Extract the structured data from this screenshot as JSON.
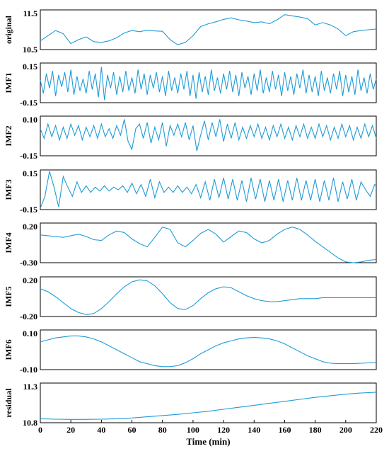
{
  "chart_data": {
    "type": "line",
    "xlabel": "Time (min)",
    "xlim": [
      0,
      220
    ],
    "x_ticks": [
      "0",
      "20",
      "40",
      "60",
      "80",
      "100",
      "120",
      "140",
      "160",
      "180",
      "200",
      "220"
    ],
    "line_color": "#1e9bd7",
    "grid": false,
    "panels": [
      {
        "label": "original",
        "ylim": [
          10.5,
          11.5
        ],
        "ytick_top": "11.5",
        "ytick_bottom": "10.5",
        "x": [
          0,
          5,
          10,
          15,
          20,
          25,
          30,
          35,
          40,
          45,
          50,
          55,
          60,
          65,
          70,
          75,
          80,
          85,
          90,
          95,
          100,
          105,
          110,
          115,
          120,
          125,
          130,
          135,
          140,
          145,
          150,
          155,
          160,
          165,
          170,
          175,
          180,
          185,
          190,
          195,
          200,
          205,
          210,
          215,
          220
        ],
        "y": [
          10.72,
          10.85,
          10.98,
          10.9,
          10.65,
          10.75,
          10.82,
          10.7,
          10.68,
          10.72,
          10.8,
          10.92,
          10.98,
          10.95,
          10.99,
          10.97,
          10.96,
          10.75,
          10.62,
          10.68,
          10.85,
          11.08,
          11.15,
          11.2,
          11.26,
          11.3,
          11.25,
          11.22,
          11.18,
          11.2,
          11.15,
          11.25,
          11.38,
          11.35,
          11.32,
          11.28,
          11.12,
          11.18,
          11.12,
          11.02,
          10.85,
          10.95,
          10.98,
          11.0,
          11.02
        ]
      },
      {
        "label": "IMF1",
        "ylim": [
          -0.15,
          0.15
        ],
        "ytick_top": "0.15",
        "ytick_bottom": "-0.15",
        "x": [
          0,
          2,
          4,
          6,
          8,
          10,
          12,
          14,
          16,
          18,
          20,
          22,
          24,
          26,
          28,
          30,
          32,
          34,
          36,
          38,
          40,
          42,
          44,
          46,
          48,
          50,
          52,
          54,
          56,
          58,
          60,
          62,
          64,
          66,
          68,
          70,
          72,
          74,
          76,
          78,
          80,
          82,
          84,
          86,
          88,
          90,
          92,
          94,
          96,
          98,
          100,
          102,
          104,
          106,
          108,
          110,
          112,
          114,
          116,
          118,
          120,
          122,
          124,
          126,
          128,
          130,
          132,
          134,
          136,
          138,
          140,
          142,
          144,
          146,
          148,
          150,
          152,
          154,
          156,
          158,
          160,
          162,
          164,
          166,
          168,
          170,
          172,
          174,
          176,
          178,
          180,
          182,
          184,
          186,
          188,
          190,
          192,
          194,
          196,
          198,
          200,
          202,
          204,
          206,
          208,
          210,
          212,
          214,
          216,
          218,
          220
        ],
        "y": [
          0.02,
          -0.08,
          0.07,
          -0.04,
          0.09,
          -0.1,
          0.06,
          -0.03,
          0.08,
          -0.07,
          0.1,
          -0.09,
          0.05,
          -0.06,
          0.03,
          -0.08,
          0.09,
          -0.05,
          0.07,
          -0.11,
          0.12,
          -0.13,
          0.06,
          -0.04,
          0.08,
          -0.09,
          0.05,
          -0.07,
          0.09,
          -0.06,
          0.04,
          -0.08,
          0.1,
          -0.05,
          0.07,
          -0.09,
          0.06,
          -0.04,
          0.08,
          -0.07,
          0.05,
          -0.1,
          0.09,
          -0.06,
          0.04,
          -0.08,
          0.07,
          -0.05,
          0.09,
          -0.1,
          0.06,
          -0.12,
          0.08,
          -0.07,
          0.05,
          -0.09,
          0.1,
          -0.06,
          0.04,
          -0.08,
          0.07,
          -0.05,
          0.09,
          -0.07,
          0.06,
          -0.1,
          0.08,
          -0.04,
          0.05,
          -0.09,
          0.07,
          -0.06,
          0.1,
          -0.08,
          0.04,
          -0.07,
          0.09,
          -0.05,
          0.06,
          -0.1,
          0.08,
          -0.06,
          0.05,
          -0.09,
          0.07,
          -0.04,
          0.1,
          -0.08,
          0.06,
          -0.07,
          0.05,
          -0.1,
          0.09,
          -0.06,
          0.04,
          -0.08,
          0.07,
          -0.05,
          0.09,
          -0.1,
          0.06,
          -0.07,
          0.05,
          -0.09,
          0.1,
          -0.06,
          0.04,
          -0.08,
          0.07,
          -0.05,
          0.03
        ]
      },
      {
        "label": "IMF2",
        "ylim": [
          -0.15,
          0.1
        ],
        "ytick_top": "0.10",
        "ytick_bottom": "-0.15",
        "x": [
          0,
          2.5,
          5,
          7.5,
          10,
          12.5,
          15,
          17.5,
          20,
          22.5,
          25,
          27.5,
          30,
          32.5,
          35,
          37.5,
          40,
          42.5,
          45,
          47.5,
          50,
          52.5,
          55,
          57.5,
          60,
          62.5,
          65,
          67.5,
          70,
          72.5,
          75,
          77.5,
          80,
          82.5,
          85,
          87.5,
          90,
          92.5,
          95,
          97.5,
          100,
          102.5,
          105,
          107.5,
          110,
          112.5,
          115,
          117.5,
          120,
          122.5,
          125,
          127.5,
          130,
          132.5,
          135,
          137.5,
          140,
          142.5,
          145,
          147.5,
          150,
          152.5,
          155,
          157.5,
          160,
          162.5,
          165,
          167.5,
          170,
          172.5,
          175,
          177.5,
          180,
          182.5,
          185,
          187.5,
          190,
          192.5,
          195,
          197.5,
          200,
          202.5,
          205,
          207.5,
          210,
          212.5,
          215,
          217.5,
          220
        ],
        "y": [
          0.02,
          -0.04,
          0.05,
          -0.03,
          0.04,
          -0.05,
          0.03,
          -0.04,
          0.05,
          -0.02,
          0.04,
          -0.05,
          0.03,
          -0.03,
          0.04,
          -0.04,
          0.05,
          -0.03,
          0.02,
          -0.04,
          0.04,
          -0.02,
          0.08,
          -0.06,
          -0.11,
          0.02,
          0.05,
          -0.04,
          0.06,
          -0.07,
          0.03,
          -0.05,
          0.06,
          -0.09,
          0.04,
          -0.02,
          0.05,
          -0.03,
          0.06,
          -0.05,
          0.04,
          -0.12,
          -0.02,
          0.07,
          -0.05,
          0.06,
          -0.03,
          0.08,
          -0.06,
          0.05,
          -0.04,
          0.06,
          -0.05,
          0.03,
          -0.04,
          0.04,
          -0.03,
          0.05,
          -0.04,
          0.03,
          -0.05,
          0.04,
          -0.03,
          0.05,
          -0.04,
          0.03,
          -0.05,
          0.04,
          -0.03,
          0.05,
          -0.04,
          0.03,
          -0.04,
          0.05,
          -0.03,
          0.04,
          -0.05,
          0.03,
          -0.04,
          0.05,
          -0.03,
          0.04,
          -0.05,
          0.03,
          -0.04,
          0.05,
          -0.03,
          0.04,
          -0.04
        ]
      },
      {
        "label": "IMF3",
        "ylim": [
          -0.15,
          0.15
        ],
        "ytick_top": "0.15",
        "ytick_bottom": "-0.15",
        "x": [
          0,
          3,
          6,
          9,
          12,
          15,
          18,
          21,
          24,
          27,
          30,
          33,
          36,
          39,
          42,
          45,
          48,
          51,
          54,
          57,
          60,
          63,
          66,
          69,
          72,
          75,
          78,
          81,
          84,
          87,
          90,
          93,
          96,
          99,
          102,
          105,
          108,
          111,
          114,
          117,
          120,
          123,
          126,
          129,
          132,
          135,
          138,
          141,
          144,
          147,
          150,
          153,
          156,
          159,
          162,
          165,
          168,
          171,
          174,
          177,
          180,
          183,
          186,
          189,
          192,
          195,
          198,
          201,
          204,
          207,
          210,
          213,
          216,
          219,
          220
        ],
        "y": [
          -0.14,
          -0.05,
          0.14,
          0.02,
          -0.13,
          0.1,
          0.02,
          -0.05,
          0.06,
          -0.02,
          0.03,
          -0.02,
          0.02,
          -0.01,
          0.03,
          -0.01,
          0.02,
          0.0,
          0.03,
          -0.02,
          0.05,
          -0.03,
          0.04,
          -0.05,
          0.08,
          -0.06,
          0.06,
          -0.02,
          0.02,
          -0.02,
          0.03,
          -0.02,
          0.02,
          -0.03,
          0.04,
          -0.06,
          0.06,
          -0.08,
          0.08,
          -0.06,
          0.09,
          -0.07,
          0.08,
          -0.08,
          0.07,
          -0.09,
          0.09,
          -0.07,
          0.08,
          -0.09,
          0.07,
          -0.08,
          0.08,
          -0.09,
          0.07,
          -0.08,
          0.09,
          -0.08,
          0.07,
          -0.08,
          0.08,
          -0.09,
          0.07,
          -0.08,
          0.09,
          -0.09,
          0.06,
          -0.07,
          0.08,
          -0.08,
          0.06,
          0.0,
          -0.05,
          0.04,
          0.03
        ]
      },
      {
        "label": "IMF4",
        "ylim": [
          -0.3,
          0.2
        ],
        "ytick_top": "0.20",
        "ytick_bottom": "-0.30",
        "x": [
          0,
          5,
          10,
          15,
          20,
          25,
          30,
          35,
          40,
          45,
          50,
          55,
          60,
          65,
          70,
          75,
          80,
          85,
          90,
          95,
          100,
          105,
          110,
          115,
          120,
          125,
          130,
          135,
          140,
          145,
          150,
          155,
          160,
          165,
          170,
          175,
          180,
          185,
          190,
          195,
          200,
          205,
          210,
          215,
          220
        ],
        "y": [
          0.05,
          0.04,
          0.03,
          0.02,
          0.04,
          0.06,
          0.03,
          -0.01,
          -0.02,
          0.05,
          0.1,
          0.08,
          0.0,
          -0.06,
          -0.1,
          0.02,
          0.15,
          0.12,
          -0.05,
          -0.1,
          -0.02,
          0.07,
          0.12,
          0.06,
          -0.04,
          0.03,
          0.1,
          0.08,
          0.0,
          -0.05,
          -0.02,
          0.06,
          0.12,
          0.15,
          0.12,
          0.05,
          -0.03,
          -0.1,
          -0.17,
          -0.24,
          -0.29,
          -0.3,
          -0.29,
          -0.27,
          -0.26
        ]
      },
      {
        "label": "IMF5",
        "ylim": [
          -0.2,
          0.2
        ],
        "ytick_top": "0.20",
        "ytick_bottom": "-0.20",
        "x": [
          0,
          5,
          10,
          15,
          20,
          25,
          30,
          35,
          40,
          45,
          50,
          55,
          60,
          65,
          70,
          75,
          80,
          85,
          90,
          95,
          100,
          105,
          110,
          115,
          120,
          125,
          130,
          135,
          140,
          145,
          150,
          155,
          160,
          165,
          170,
          175,
          180,
          185,
          190,
          195,
          200,
          205,
          210,
          215,
          220
        ],
        "y": [
          0.08,
          0.05,
          0.0,
          -0.06,
          -0.12,
          -0.16,
          -0.18,
          -0.17,
          -0.12,
          -0.05,
          0.03,
          0.1,
          0.15,
          0.17,
          0.16,
          0.11,
          0.03,
          -0.06,
          -0.12,
          -0.13,
          -0.09,
          -0.02,
          0.04,
          0.08,
          0.1,
          0.09,
          0.05,
          0.01,
          -0.02,
          -0.04,
          -0.05,
          -0.05,
          -0.04,
          -0.03,
          -0.02,
          -0.02,
          -0.02,
          -0.01,
          -0.01,
          -0.01,
          -0.01,
          -0.01,
          -0.01,
          -0.01,
          -0.01
        ]
      },
      {
        "label": "IMF6",
        "ylim": [
          -0.1,
          0.1
        ],
        "ytick_top": "0.10",
        "ytick_bottom": "-0.10",
        "x": [
          0,
          5,
          10,
          15,
          20,
          25,
          30,
          35,
          40,
          45,
          50,
          55,
          60,
          65,
          70,
          75,
          80,
          85,
          90,
          95,
          100,
          105,
          110,
          115,
          120,
          125,
          130,
          135,
          140,
          145,
          150,
          155,
          160,
          165,
          170,
          175,
          180,
          185,
          190,
          195,
          200,
          205,
          210,
          215,
          220
        ],
        "y": [
          0.04,
          0.05,
          0.06,
          0.065,
          0.07,
          0.07,
          0.065,
          0.055,
          0.04,
          0.02,
          0.0,
          -0.02,
          -0.04,
          -0.06,
          -0.07,
          -0.08,
          -0.085,
          -0.085,
          -0.08,
          -0.065,
          -0.045,
          -0.02,
          0.0,
          0.02,
          0.035,
          0.045,
          0.055,
          0.06,
          0.062,
          0.06,
          0.055,
          0.045,
          0.03,
          0.01,
          -0.01,
          -0.03,
          -0.045,
          -0.06,
          -0.068,
          -0.07,
          -0.07,
          -0.07,
          -0.068,
          -0.066,
          -0.065
        ]
      },
      {
        "label": "residual",
        "ylim": [
          10.8,
          11.3
        ],
        "ytick_top": "11.3",
        "ytick_bottom": "10.8",
        "x": [
          0,
          10,
          20,
          30,
          40,
          50,
          60,
          70,
          80,
          90,
          100,
          110,
          120,
          130,
          140,
          150,
          160,
          170,
          180,
          190,
          200,
          210,
          220
        ],
        "y": [
          10.85,
          10.845,
          10.842,
          10.842,
          10.845,
          10.85,
          10.86,
          10.875,
          10.89,
          10.905,
          10.925,
          10.945,
          10.97,
          10.995,
          11.02,
          11.045,
          11.07,
          11.095,
          11.12,
          11.14,
          11.16,
          11.175,
          11.185
        ]
      }
    ]
  }
}
